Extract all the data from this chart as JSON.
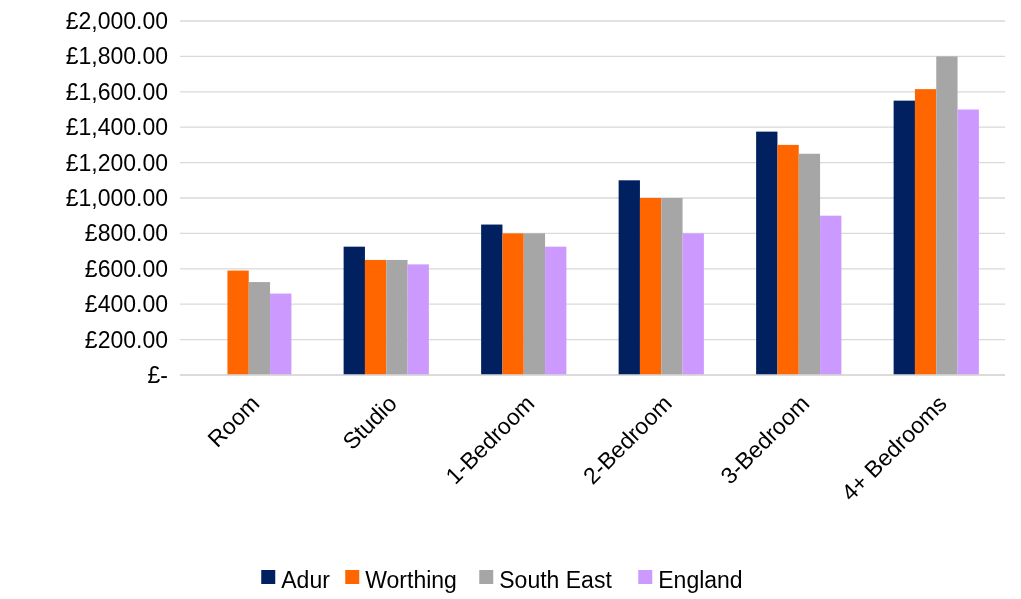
{
  "chart_data": {
    "type": "bar",
    "categories": [
      "Room",
      "Studio",
      "1-Bedroom",
      "2-Bedroom",
      "3-Bedroom",
      "4+ Bedrooms"
    ],
    "series": [
      {
        "name": "Adur",
        "color": "#002060",
        "values": [
          null,
          725,
          850,
          1100,
          1375,
          1550
        ]
      },
      {
        "name": "Worthing",
        "color": "#ff6600",
        "values": [
          590,
          650,
          800,
          1000,
          1300,
          1615
        ]
      },
      {
        "name": "South East",
        "color": "#a6a6a6",
        "values": [
          525,
          650,
          800,
          1000,
          1250,
          1800
        ]
      },
      {
        "name": "England",
        "color": "#cc99ff",
        "values": [
          460,
          625,
          725,
          800,
          900,
          1500
        ]
      }
    ],
    "ylim": [
      0,
      2000
    ],
    "yticks": [
      {
        "value": 0,
        "label": "£-"
      },
      {
        "value": 200,
        "label": "£200.00"
      },
      {
        "value": 400,
        "label": "£400.00"
      },
      {
        "value": 600,
        "label": "£600.00"
      },
      {
        "value": 800,
        "label": "£800.00"
      },
      {
        "value": 1000,
        "label": "£1,000.00"
      },
      {
        "value": 1200,
        "label": "£1,200.00"
      },
      {
        "value": 1400,
        "label": "£1,400.00"
      },
      {
        "value": 1600,
        "label": "£1,600.00"
      },
      {
        "value": 1800,
        "label": "£1,800.00"
      },
      {
        "value": 2000,
        "label": "£2,000.00"
      }
    ],
    "grid": "y",
    "legend": "bottom"
  }
}
